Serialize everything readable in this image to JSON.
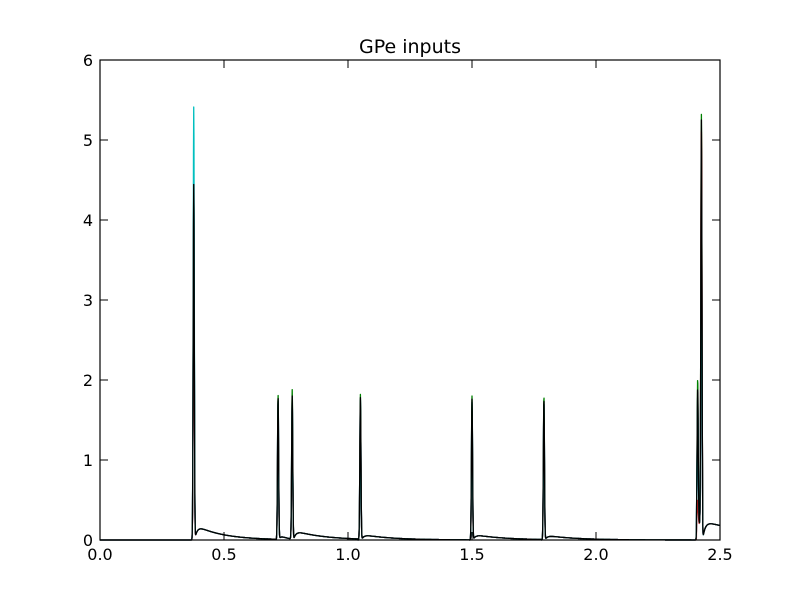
{
  "chart_data": {
    "type": "line",
    "title": "GPe inputs",
    "xlabel": "",
    "ylabel": "",
    "xlim": [
      0.0,
      2.5
    ],
    "ylim": [
      0,
      6
    ],
    "x_ticks": [
      "0.0",
      "0.5",
      "1.0",
      "1.5",
      "2.0",
      "2.5"
    ],
    "y_ticks": [
      "0",
      "1",
      "2",
      "3",
      "4",
      "5",
      "6"
    ],
    "grid": false,
    "legend": "none",
    "series": [
      {
        "color": "#0000ff",
        "peaks": [
          [
            0.378,
            4.3
          ],
          [
            0.718,
            1.75
          ],
          [
            0.775,
            1.75
          ],
          [
            1.05,
            1.75
          ],
          [
            1.5,
            1.72
          ],
          [
            1.79,
            1.72
          ],
          [
            2.41,
            1.6
          ],
          [
            2.425,
            4.7
          ]
        ]
      },
      {
        "color": "#008000",
        "peaks": [
          [
            0.378,
            4.4
          ],
          [
            0.718,
            1.82
          ],
          [
            0.775,
            1.88
          ],
          [
            1.05,
            1.82
          ],
          [
            1.5,
            1.8
          ],
          [
            1.79,
            1.8
          ],
          [
            2.41,
            1.82
          ],
          [
            2.425,
            5.12
          ]
        ]
      },
      {
        "color": "#ff0000",
        "peaks": [
          [
            0.378,
            4.2
          ],
          [
            0.718,
            1.5
          ],
          [
            0.775,
            1.5
          ],
          [
            1.05,
            1.5
          ],
          [
            1.5,
            1.45
          ],
          [
            1.79,
            1.45
          ],
          [
            2.41,
            0.3
          ],
          [
            2.425,
            4.9
          ]
        ]
      },
      {
        "color": "#00bfbf",
        "peaks": [
          [
            0.378,
            5.42
          ],
          [
            0.718,
            1.45
          ],
          [
            0.775,
            1.55
          ],
          [
            1.05,
            1.45
          ],
          [
            1.5,
            1.45
          ],
          [
            1.79,
            1.45
          ],
          [
            2.41,
            1.45
          ],
          [
            2.425,
            4.2
          ]
        ]
      },
      {
        "color": "#000000",
        "peaks": [
          [
            0.378,
            4.45
          ],
          [
            0.718,
            1.78
          ],
          [
            0.775,
            1.8
          ],
          [
            1.05,
            1.78
          ],
          [
            1.5,
            1.76
          ],
          [
            1.79,
            1.76
          ],
          [
            2.41,
            1.7
          ],
          [
            2.425,
            5.05
          ]
        ]
      }
    ]
  }
}
